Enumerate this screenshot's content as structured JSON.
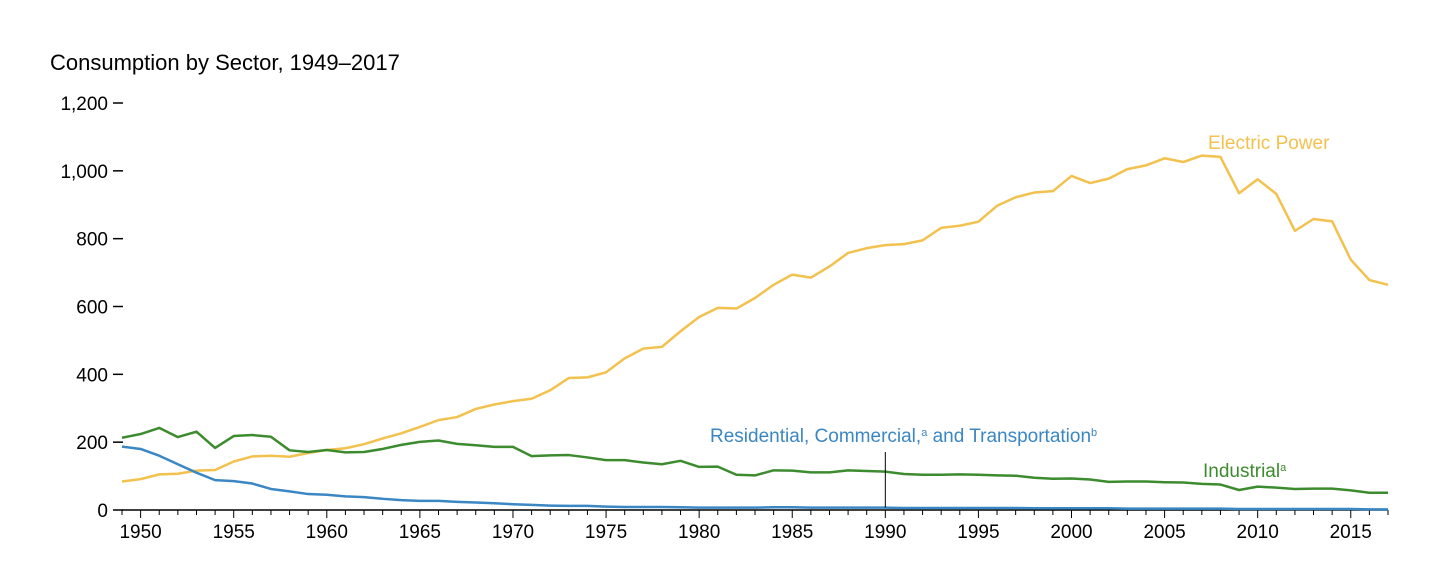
{
  "chart_data": {
    "type": "line",
    "title": "Consumption by Sector, 1949–2017",
    "xlabel": "",
    "ylabel": "",
    "xlim": [
      1949,
      2017
    ],
    "ylim": [
      0,
      1200
    ],
    "yticks": [
      0,
      200,
      400,
      600,
      800,
      1000,
      1200
    ],
    "ytick_labels": [
      "0",
      "200",
      "400",
      "600",
      "800",
      "1,000",
      "1,200"
    ],
    "xticks": [
      1950,
      1955,
      1960,
      1965,
      1970,
      1975,
      1980,
      1985,
      1990,
      1995,
      2000,
      2005,
      2010,
      2015
    ],
    "xtick_labels": [
      "1950",
      "1955",
      "1960",
      "1965",
      "1970",
      "1975",
      "1980",
      "1985",
      "1990",
      "1995",
      "2000",
      "2005",
      "2010",
      "2015"
    ],
    "grid": false,
    "years": [
      1949,
      1950,
      1951,
      1952,
      1953,
      1954,
      1955,
      1956,
      1957,
      1958,
      1959,
      1960,
      1961,
      1962,
      1963,
      1964,
      1965,
      1966,
      1967,
      1968,
      1969,
      1970,
      1971,
      1972,
      1973,
      1974,
      1975,
      1976,
      1977,
      1978,
      1979,
      1980,
      1981,
      1982,
      1983,
      1984,
      1985,
      1986,
      1987,
      1988,
      1989,
      1990,
      1991,
      1992,
      1993,
      1994,
      1995,
      1996,
      1997,
      1998,
      1999,
      2000,
      2001,
      2002,
      2003,
      2004,
      2005,
      2006,
      2007,
      2008,
      2009,
      2010,
      2011,
      2012,
      2013,
      2014,
      2015,
      2016,
      2017
    ],
    "series": [
      {
        "key": "electric",
        "label": "Electric Power",
        "superscript": "",
        "color": "#f2c14e",
        "values": [
          84,
          91,
          105,
          107,
          116,
          118,
          143,
          158,
          160,
          157,
          168,
          177,
          182,
          194,
          211,
          226,
          245,
          265,
          274,
          298,
          311,
          321,
          328,
          353,
          389,
          391,
          406,
          447,
          476,
          481,
          527,
          569,
          596,
          594,
          625,
          664,
          694,
          685,
          718,
          758,
          772,
          781,
          784,
          795,
          832,
          838,
          850,
          897,
          922,
          936,
          940,
          985,
          964,
          977,
          1005,
          1016,
          1037,
          1026,
          1045,
          1041,
          934,
          975,
          932,
          823,
          858,
          851,
          738,
          678,
          664
        ]
      },
      {
        "key": "industrial",
        "label": "Industrial",
        "superscript": "a",
        "color": "#3d8b2f",
        "values": [
          213,
          224,
          242,
          215,
          231,
          183,
          218,
          221,
          216,
          176,
          171,
          177,
          170,
          171,
          180,
          192,
          201,
          205,
          195,
          191,
          186,
          186,
          159,
          161,
          162,
          155,
          147,
          147,
          140,
          135,
          145,
          127,
          128,
          104,
          102,
          117,
          116,
          111,
          111,
          117,
          115,
          113,
          106,
          104,
          104,
          105,
          104,
          102,
          101,
          95,
          92,
          93,
          90,
          83,
          84,
          84,
          82,
          81,
          77,
          75,
          59,
          69,
          66,
          62,
          63,
          63,
          58,
          51,
          51
        ]
      },
      {
        "key": "residential",
        "label": "Residential, Commercial,",
        "label_tail": "and Transportation",
        "superscript": "a",
        "superscript_tail": "b",
        "color": "#3a87c4",
        "values": [
          187,
          180,
          160,
          135,
          110,
          88,
          85,
          78,
          62,
          55,
          47,
          45,
          40,
          38,
          33,
          29,
          27,
          27,
          24,
          22,
          20,
          17,
          15,
          13,
          12,
          12,
          10,
          9,
          9,
          9,
          8,
          7,
          7,
          7,
          7,
          8,
          8,
          7,
          7,
          7,
          7,
          7,
          6,
          6,
          6,
          6,
          6,
          6,
          6,
          5,
          5,
          5,
          5,
          5,
          4,
          4,
          4,
          4,
          4,
          4,
          3,
          3,
          3,
          3,
          3,
          3,
          3,
          2,
          2
        ]
      }
    ]
  }
}
